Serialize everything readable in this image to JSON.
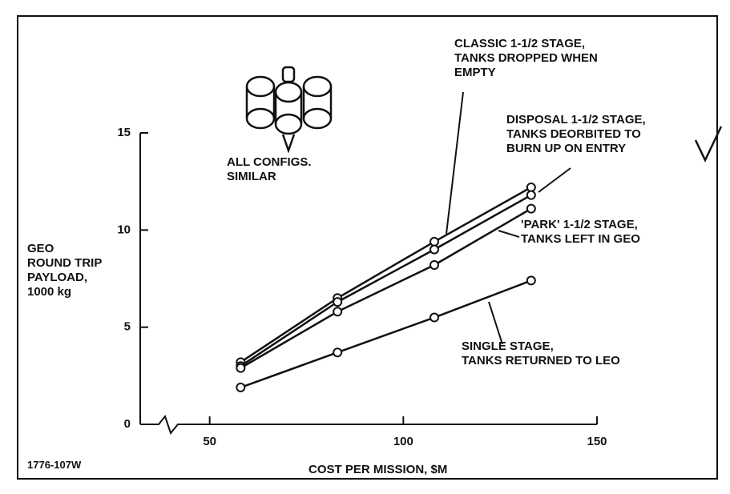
{
  "chart_data": {
    "type": "line",
    "x_label": "COST PER MISSION, $M",
    "y_label": "GEO\nROUND TRIP\nPAYLOAD,\n1000 kg",
    "annotations": [
      "ALL CONFIGS.\nSIMILAR"
    ],
    "figure_code": "1776-107W",
    "x": [
      58,
      83,
      108,
      133
    ],
    "series": [
      {
        "name": "CLASSIC 1-1/2 STAGE,\nTANKS DROPPED WHEN\nEMPTY",
        "color": "#111111",
        "values": [
          3.2,
          6.5,
          9.4,
          12.2
        ]
      },
      {
        "name": "DISPOSAL 1-1/2 STAGE,\nTANKS DEORBITED TO\nBURN UP ON ENTRY",
        "color": "#111111",
        "values": [
          3.0,
          6.3,
          9.0,
          11.8
        ]
      },
      {
        "name": "'PARK' 1-1/2 STAGE,\nTANKS LEFT IN GEO",
        "color": "#111111",
        "values": [
          2.9,
          5.8,
          8.2,
          11.1
        ]
      },
      {
        "name": "SINGLE STAGE,\nTANKS RETURNED TO LEO",
        "color": "#111111",
        "values": [
          1.9,
          3.7,
          5.5,
          7.4
        ]
      }
    ],
    "xlim": [
      30,
      150
    ],
    "xticks": [
      50,
      100,
      150
    ],
    "ylim": [
      0,
      15
    ],
    "yticks": [
      0,
      5,
      10,
      15
    ],
    "grid": false
  }
}
